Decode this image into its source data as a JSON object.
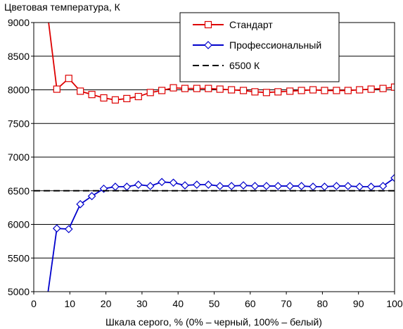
{
  "chart_data": {
    "type": "line",
    "title": "",
    "ylabel": "Цветовая температура, К",
    "xlabel": "Шкала серого, % (0% – черный, 100% – белый)",
    "xlim": [
      0,
      100
    ],
    "ylim": [
      5000,
      9000
    ],
    "x_ticks": [
      "0",
      "10",
      "20",
      "30",
      "40",
      "50",
      "60",
      "70",
      "80",
      "90",
      "100"
    ],
    "y_ticks": [
      "5000",
      "5500",
      "6000",
      "6500",
      "7000",
      "7500",
      "8000",
      "8500",
      "9000"
    ],
    "grid": "horizontal",
    "legend_position": "top-right",
    "series": [
      {
        "name": "Стандарт",
        "color": "#dd0000",
        "marker": "square",
        "x": [
          3.2,
          6.4,
          9.7,
          12.9,
          16.1,
          19.4,
          22.6,
          25.8,
          29.0,
          32.3,
          35.5,
          38.7,
          41.9,
          45.2,
          48.4,
          51.6,
          54.8,
          58.1,
          61.3,
          64.5,
          67.7,
          71.0,
          74.2,
          77.4,
          80.6,
          83.9,
          87.1,
          90.3,
          93.5,
          96.8,
          100
        ],
        "values": [
          9400,
          8010,
          8170,
          7980,
          7930,
          7880,
          7850,
          7870,
          7900,
          7960,
          7990,
          8030,
          8020,
          8020,
          8020,
          8010,
          8000,
          7990,
          7970,
          7960,
          7970,
          7980,
          7990,
          8000,
          7990,
          7990,
          7990,
          8000,
          8010,
          8020,
          8040
        ]
      },
      {
        "name": "Профессиональный",
        "color": "#0000cc",
        "marker": "diamond",
        "x": [
          3.2,
          6.4,
          9.7,
          12.9,
          16.1,
          19.4,
          22.6,
          25.8,
          29.0,
          32.3,
          35.5,
          38.7,
          41.9,
          45.2,
          48.4,
          51.6,
          54.8,
          58.1,
          61.3,
          64.5,
          67.7,
          71.0,
          74.2,
          77.4,
          80.6,
          83.9,
          87.1,
          90.3,
          93.5,
          96.8,
          100
        ],
        "values": [
          4700,
          5940,
          5930,
          6300,
          6420,
          6530,
          6560,
          6560,
          6590,
          6570,
          6630,
          6620,
          6580,
          6590,
          6590,
          6570,
          6570,
          6580,
          6570,
          6570,
          6570,
          6570,
          6570,
          6560,
          6560,
          6570,
          6570,
          6560,
          6560,
          6570,
          6690
        ]
      },
      {
        "name": "6500 К",
        "color": "#000000",
        "marker": "none",
        "dashed": true,
        "x": [
          0,
          100
        ],
        "values": [
          6500,
          6500
        ]
      }
    ]
  }
}
